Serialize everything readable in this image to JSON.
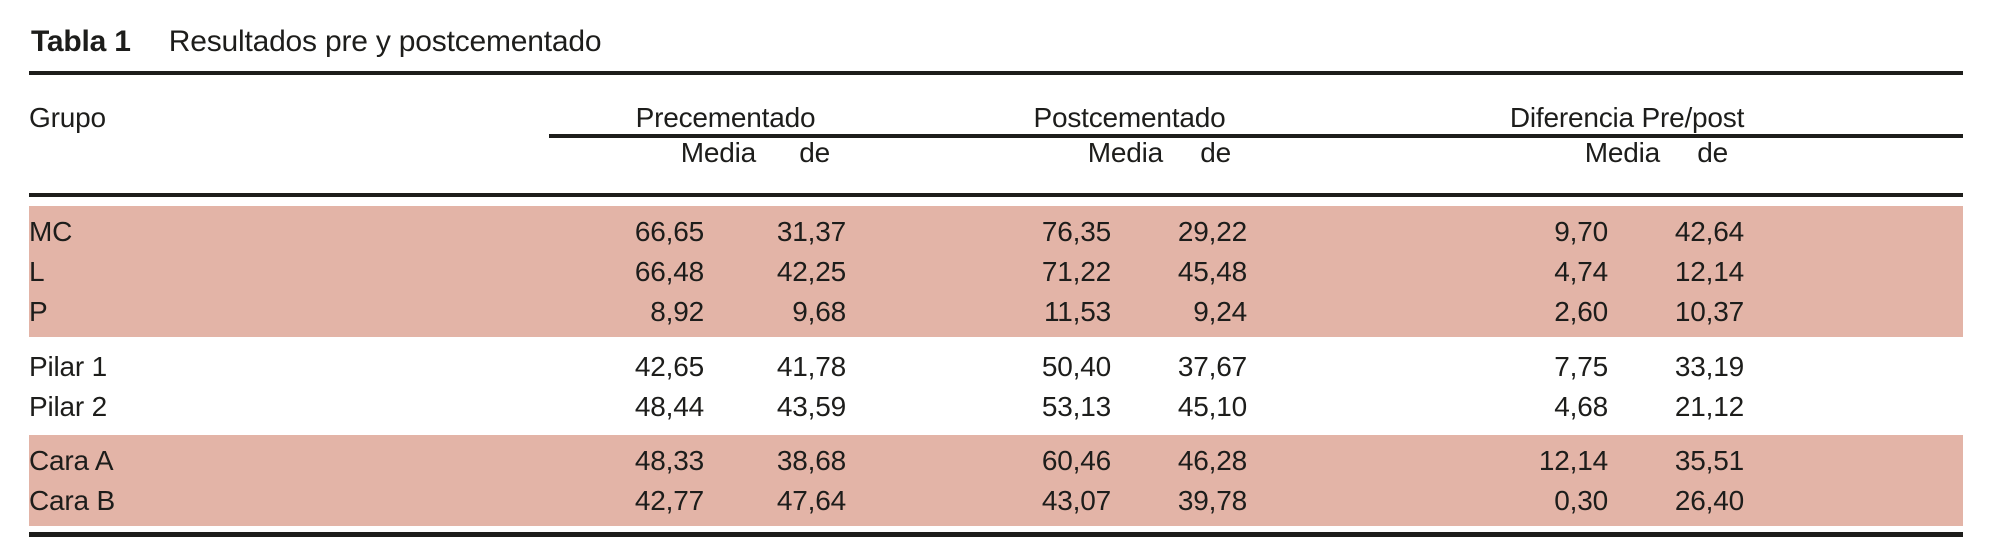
{
  "table": {
    "caption": {
      "label": "Tabla 1",
      "text": "Resultados pre y postcementado"
    },
    "columns": {
      "grupo": "Grupo",
      "groups": [
        {
          "label": "Precementado",
          "sub": [
            "Media",
            "de"
          ]
        },
        {
          "label": "Postcementado",
          "sub": [
            "Media",
            "de"
          ]
        },
        {
          "label": "Diferencia Pre/post",
          "sub": [
            "Media",
            "de"
          ]
        }
      ]
    },
    "blocks": [
      {
        "shaded": true,
        "rows": [
          {
            "grupo": "MC",
            "values": [
              "66,65",
              "31,37",
              "76,35",
              "29,22",
              "9,70",
              "42,64"
            ]
          },
          {
            "grupo": "L",
            "values": [
              "66,48",
              "42,25",
              "71,22",
              "45,48",
              "4,74",
              "12,14"
            ]
          },
          {
            "grupo": "P",
            "values": [
              "8,92",
              "9,68",
              "11,53",
              "9,24",
              "2,60",
              "10,37"
            ]
          }
        ]
      },
      {
        "shaded": false,
        "rows": [
          {
            "grupo": "Pilar 1",
            "values": [
              "42,65",
              "41,78",
              "50,40",
              "37,67",
              "7,75",
              "33,19"
            ]
          },
          {
            "grupo": "Pilar 2",
            "values": [
              "48,44",
              "43,59",
              "53,13",
              "45,10",
              "4,68",
              "21,12"
            ]
          }
        ]
      },
      {
        "shaded": true,
        "rows": [
          {
            "grupo": "Cara A",
            "values": [
              "48,33",
              "38,68",
              "60,46",
              "46,28",
              "12,14",
              "35,51"
            ]
          },
          {
            "grupo": "Cara B",
            "values": [
              "42,77",
              "47,64",
              "43,07",
              "39,78",
              "0,30",
              "26,40"
            ]
          }
        ]
      }
    ],
    "colors": {
      "row_shade": "#e3b4a7",
      "rule": "#1d1d1b",
      "text": "#1d1d1b"
    }
  }
}
